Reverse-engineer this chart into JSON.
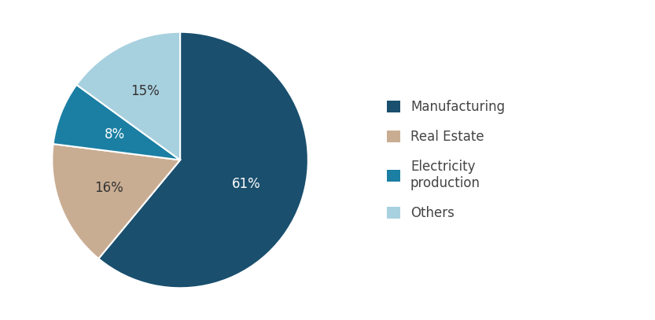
{
  "labels": [
    "Manufacturing",
    "Real Estate",
    "Electricity\nproduction",
    "Others"
  ],
  "values": [
    61,
    16,
    8,
    15
  ],
  "colors": [
    "#1a4f6e",
    "#c9ad93",
    "#1b7fa3",
    "#a8d1df"
  ],
  "pct_labels": [
    "61%",
    "16%",
    "8%",
    "15%"
  ],
  "pct_colors": [
    "#ffffff",
    "#333333",
    "#ffffff",
    "#333333"
  ],
  "legend_labels": [
    "Manufacturing",
    "Real Estate",
    "Electricity\nproduction",
    "Others"
  ],
  "background_color": "#ffffff",
  "startangle": 90,
  "label_fontsize": 12,
  "legend_fontsize": 12,
  "legend_text_color": "#444444"
}
